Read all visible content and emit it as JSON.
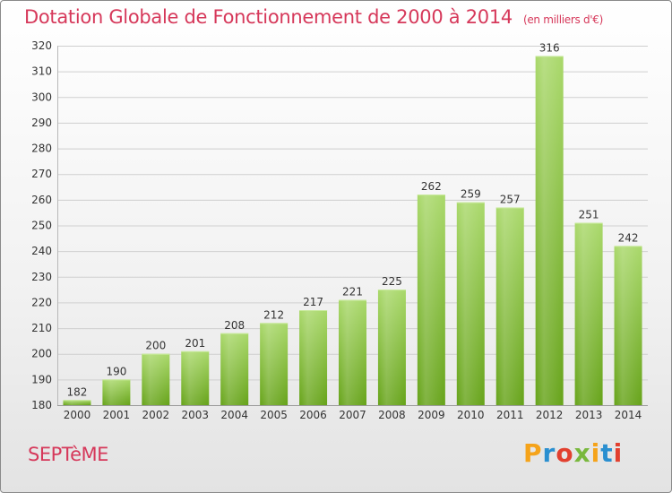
{
  "title": "Dotation Globale de Fonctionnement de 2000 à 2014",
  "subtitle": "(en milliers d'€)",
  "commune": "SEPTèME",
  "logo": {
    "text": "Proxiti",
    "colors": [
      "#f5a31a",
      "#2a8fd0",
      "#e2402f",
      "#79b83d",
      "#f5a31a",
      "#2a8fd0",
      "#e2402f"
    ]
  },
  "colors": {
    "accent": "#d6385a",
    "bar_top": "#a9d86a",
    "bar_bottom": "#66a319"
  },
  "chart_data": {
    "type": "bar",
    "categories": [
      "2000",
      "2001",
      "2002",
      "2003",
      "2004",
      "2005",
      "2006",
      "2007",
      "2008",
      "2009",
      "2010",
      "2011",
      "2012",
      "2013",
      "2014"
    ],
    "values": [
      182,
      190,
      200,
      201,
      208,
      212,
      217,
      221,
      225,
      262,
      259,
      257,
      316,
      251,
      242
    ],
    "ylim": [
      180,
      320
    ],
    "yticks": [
      180,
      190,
      200,
      210,
      220,
      230,
      240,
      250,
      260,
      270,
      280,
      290,
      300,
      310,
      320
    ],
    "grid": true,
    "xlabel": "",
    "ylabel": ""
  }
}
